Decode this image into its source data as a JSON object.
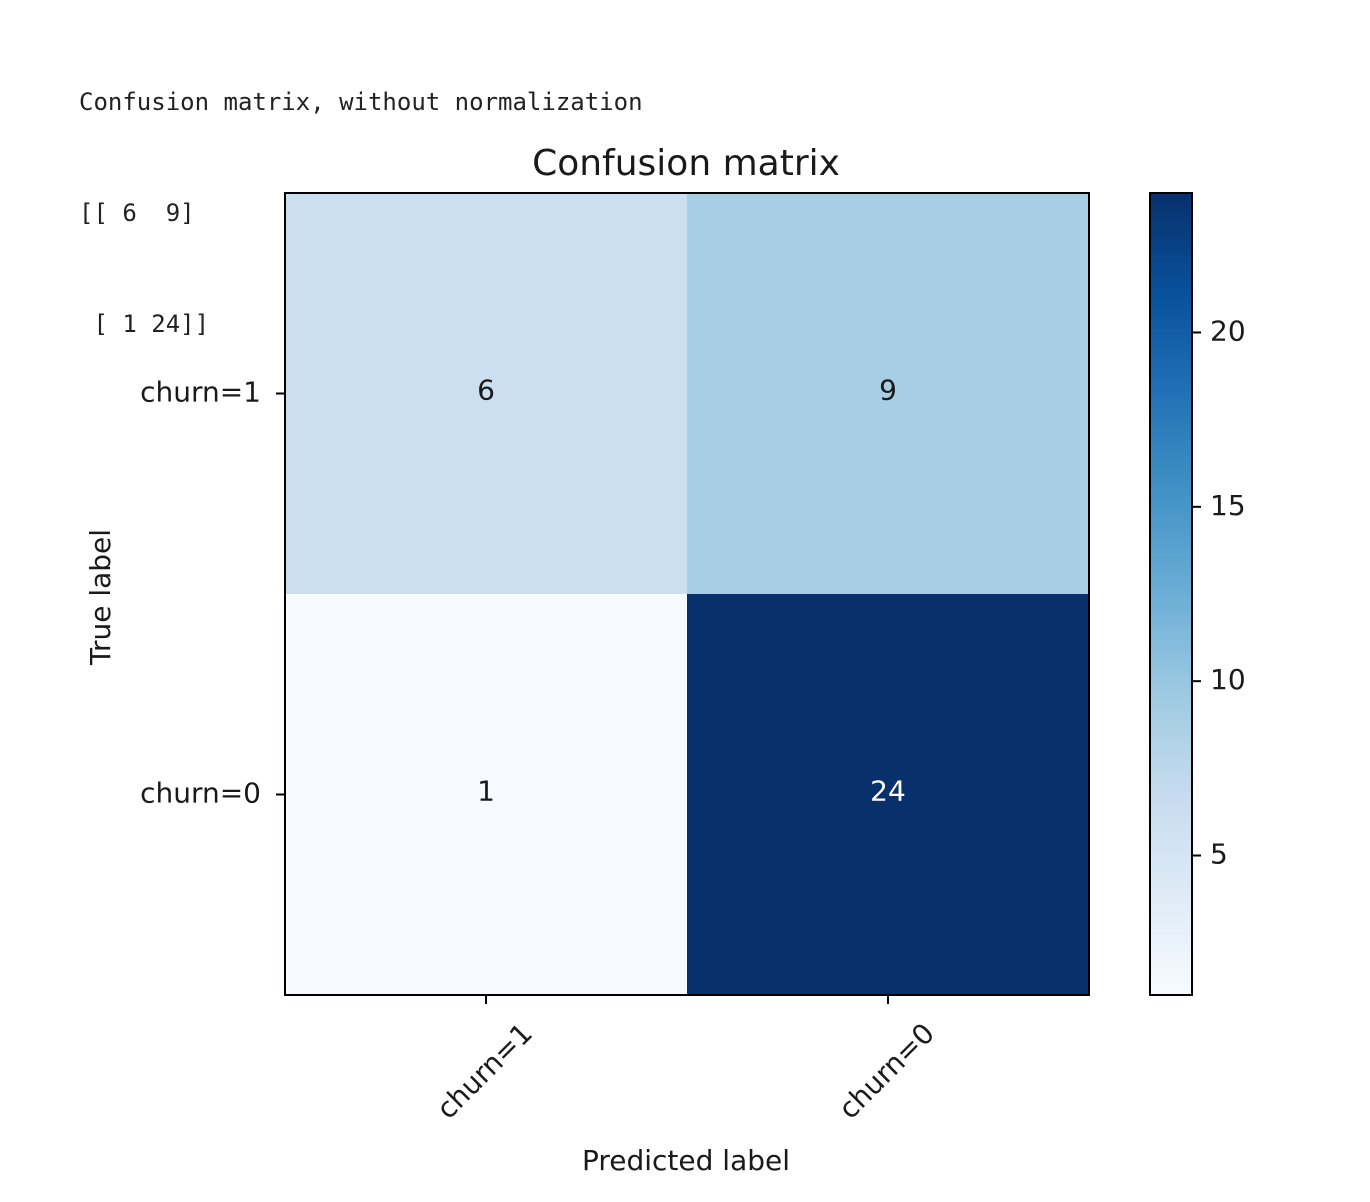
{
  "console": {
    "lines": [
      "Confusion matrix, without normalization",
      "[[ 6  9]",
      " [ 1 24]]"
    ]
  },
  "chart_data": {
    "type": "heatmap",
    "title": "Confusion matrix",
    "xlabel": "Predicted label",
    "ylabel": "True label",
    "x_categories": [
      "churn=1",
      "churn=0"
    ],
    "y_categories": [
      "churn=1",
      "churn=0"
    ],
    "values": [
      [
        6,
        9
      ],
      [
        1,
        24
      ]
    ],
    "colormap": "Blues",
    "colorbar": {
      "min": 1,
      "max": 24,
      "ticks": [
        5,
        10,
        15,
        20
      ]
    },
    "colors": {
      "light": "#f7fbff",
      "dark": "#08306b",
      "text_light": "#ffffff",
      "text_dark": "#1a1a1a"
    }
  }
}
